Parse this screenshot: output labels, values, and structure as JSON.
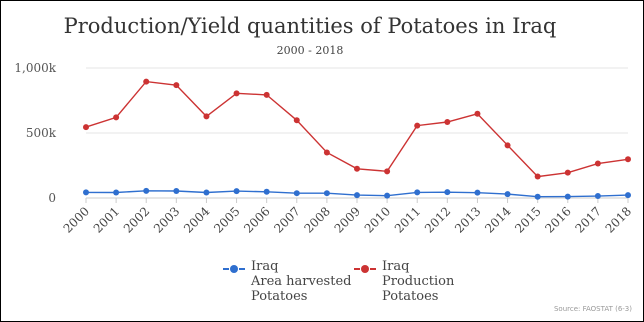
{
  "chart_data": {
    "type": "line",
    "title": "Production/Yield quantities of Potatoes in Iraq",
    "subtitle": "2000 - 2018",
    "categories": [
      "2000",
      "2001",
      "2002",
      "2003",
      "2004",
      "2005",
      "2006",
      "2007",
      "2008",
      "2009",
      "2010",
      "2011",
      "2012",
      "2013",
      "2014",
      "2015",
      "2016",
      "2017",
      "2018"
    ],
    "yticks": [
      "0",
      "500k",
      "1,000k"
    ],
    "ylim": [
      0,
      1000000
    ],
    "grid": true,
    "legend_position": "bottom",
    "series": [
      {
        "name_lines": [
          "Iraq",
          "Area harvested",
          "Potatoes"
        ],
        "color": "#2f6fcf",
        "values": [
          43000,
          42000,
          55000,
          54000,
          42000,
          53000,
          48000,
          37000,
          37000,
          22000,
          18000,
          43000,
          45000,
          41000,
          30000,
          10000,
          11000,
          15000,
          22000
        ]
      },
      {
        "name_lines": [
          "Iraq",
          "Production",
          "Potatoes"
        ],
        "color": "#cc3333",
        "values": [
          545000,
          620000,
          895000,
          868000,
          628000,
          805000,
          793000,
          598000,
          350000,
          225000,
          205000,
          557000,
          585000,
          648000,
          405000,
          165000,
          195000,
          265000,
          298000
        ]
      }
    ],
    "source": "Source: FAOSTAT (6-3)"
  }
}
